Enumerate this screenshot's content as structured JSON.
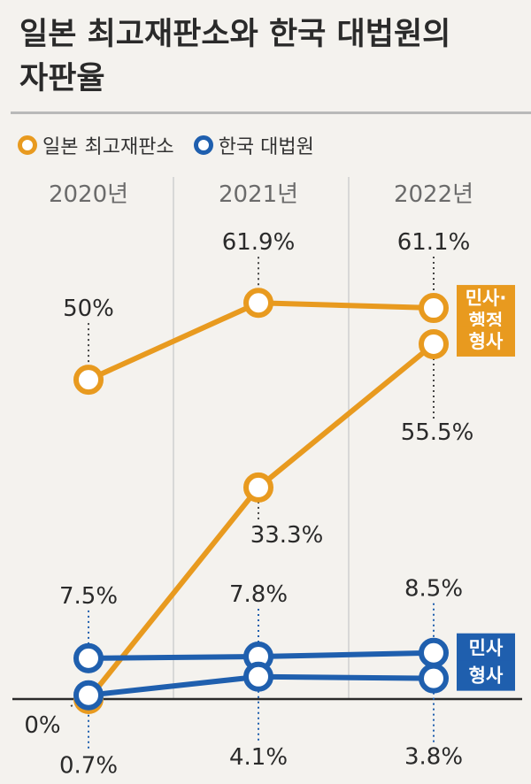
{
  "title": {
    "line1": "일본 최고재판소와 한국 대법원의",
    "line2": "자판율"
  },
  "legend": [
    {
      "label": "일본 최고재판소",
      "color": "#e89a1f"
    },
    {
      "label": "한국 대법원",
      "color": "#1f5fae"
    }
  ],
  "colors": {
    "japan": "#e89a1f",
    "korea": "#1f5fae",
    "axis": "#2a2a2a",
    "grid": "#cfcfcf"
  },
  "chart_data": {
    "type": "line",
    "x": [
      "2020년",
      "2021년",
      "2022년"
    ],
    "ylim": [
      0,
      65
    ],
    "series": [
      {
        "name": "민사·\n행정",
        "group": "일본 최고재판소",
        "values": [
          50,
          61.9,
          61.1
        ],
        "labels": [
          "50%",
          "61.9%",
          "61.1%"
        ]
      },
      {
        "name": "형사",
        "group": "일본 최고재판소",
        "values": [
          0,
          33.3,
          55.5
        ],
        "labels": [
          "0%",
          "33.3%",
          "55.5%"
        ]
      },
      {
        "name": "민사",
        "group": "한국 대법원",
        "values": [
          7.5,
          7.8,
          8.5
        ],
        "labels": [
          "7.5%",
          "7.8%",
          "8.5%"
        ]
      },
      {
        "name": "형사",
        "group": "한국 대법원",
        "values": [
          0.7,
          4.1,
          3.8
        ],
        "labels": [
          "0.7%",
          "4.1%",
          "3.8%"
        ]
      }
    ]
  }
}
